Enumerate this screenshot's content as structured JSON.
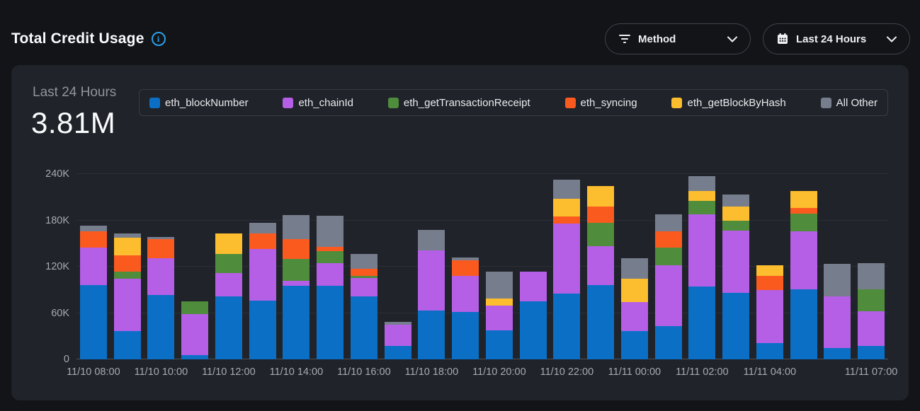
{
  "header": {
    "title": "Total Credit Usage",
    "buttons": [
      {
        "label": "Method",
        "icon": "filter-lines-icon"
      },
      {
        "label": "Last 24 Hours",
        "icon": "calendar-icon"
      }
    ]
  },
  "panel": {
    "stat_label": "Last 24 Hours",
    "stat_value": "3.81M"
  },
  "colors": {
    "page_bg": "#131418",
    "panel_bg": "#202329",
    "accent_info": "#2aa0e8",
    "gridline": "#2c2f36",
    "axis_text": "#a6aab1"
  },
  "chart_data": {
    "type": "bar",
    "stacked": true,
    "title": "Total Credit Usage",
    "period": "Last 24 Hours",
    "total": "3.81M",
    "ylim": [
      0,
      240000
    ],
    "grid": true,
    "legend_position": "top",
    "yticks": [
      {
        "value": 0,
        "label": "0"
      },
      {
        "value": 60000,
        "label": "60K"
      },
      {
        "value": 120000,
        "label": "120K"
      },
      {
        "value": 180000,
        "label": "180K"
      },
      {
        "value": 240000,
        "label": "240K"
      }
    ],
    "x": [
      "11/10 08:00",
      "11/10 09:00",
      "11/10 10:00",
      "11/10 11:00",
      "11/10 12:00",
      "11/10 13:00",
      "11/10 14:00",
      "11/10 15:00",
      "11/10 16:00",
      "11/10 17:00",
      "11/10 18:00",
      "11/10 19:00",
      "11/10 20:00",
      "11/10 21:00",
      "11/10 22:00",
      "11/10 23:00",
      "11/11 00:00",
      "11/11 01:00",
      "11/11 02:00",
      "11/11 03:00",
      "11/11 04:00",
      "11/11 05:00",
      "11/11 06:00",
      "11/11 07:00"
    ],
    "x_axis_labels": [
      {
        "slot": 0,
        "text": "11/10 08:00"
      },
      {
        "slot": 2,
        "text": "11/10 10:00"
      },
      {
        "slot": 4,
        "text": "11/10 12:00"
      },
      {
        "slot": 6,
        "text": "11/10 14:00"
      },
      {
        "slot": 8,
        "text": "11/10 16:00"
      },
      {
        "slot": 10,
        "text": "11/10 18:00"
      },
      {
        "slot": 12,
        "text": "11/10 20:00"
      },
      {
        "slot": 14,
        "text": "11/10 22:00"
      },
      {
        "slot": 16,
        "text": "11/11 00:00"
      },
      {
        "slot": 18,
        "text": "11/11 02:00"
      },
      {
        "slot": 20,
        "text": "11/11 04:00"
      },
      {
        "slot": 23,
        "text": "11/11 07:00"
      }
    ],
    "series": [
      {
        "name": "eth_blockNumber",
        "color": "#0b70c5",
        "values": [
          96500,
          37000,
          83400,
          5500,
          81200,
          75800,
          95000,
          95600,
          81200,
          17800,
          63600,
          61400,
          37600,
          74800,
          85500,
          96500,
          37000,
          43100,
          94700,
          85800,
          20800,
          91000,
          14700,
          17800
        ]
      },
      {
        "name": "eth_chainId",
        "color": "#b45fe6",
        "values": [
          48600,
          67800,
          47300,
          52800,
          30600,
          67100,
          6700,
          29000,
          24500,
          27400,
          77800,
          46400,
          32000,
          38500,
          90100,
          50400,
          37200,
          78500,
          93100,
          80600,
          68700,
          74800,
          67200,
          44200
        ]
      },
      {
        "name": "eth_getTransactionReceipt",
        "color": "#4f8c3c",
        "values": [
          0,
          8500,
          0,
          16800,
          25000,
          0,
          28400,
          15300,
          2000,
          0,
          0,
          0,
          0,
          0,
          0,
          29600,
          0,
          22900,
          17700,
          13200,
          0,
          22900,
          0,
          29000
        ]
      },
      {
        "name": "eth_syncing",
        "color": "#fb5a1f",
        "values": [
          20700,
          21100,
          25400,
          0,
          0,
          19900,
          25600,
          6100,
          9200,
          0,
          0,
          20800,
          0,
          0,
          9200,
          21400,
          0,
          21300,
          0,
          0,
          18900,
          7000,
          0,
          0
        ]
      },
      {
        "name": "eth_getBlockByHash",
        "color": "#fcbd2e",
        "values": [
          0,
          22900,
          0,
          0,
          26600,
          0,
          0,
          0,
          0,
          0,
          0,
          0,
          9200,
          0,
          23200,
          26900,
          30600,
          0,
          12900,
          18300,
          13200,
          22000,
          0,
          0
        ]
      },
      {
        "name": "All Other",
        "color": "#767d8d",
        "values": [
          7100,
          5500,
          2100,
          0,
          0,
          13700,
          31500,
          39700,
          19800,
          3100,
          26600,
          3700,
          35100,
          0,
          25000,
          0,
          25900,
          22000,
          19200,
          15300,
          0,
          0,
          41800,
          33600
        ]
      }
    ]
  }
}
